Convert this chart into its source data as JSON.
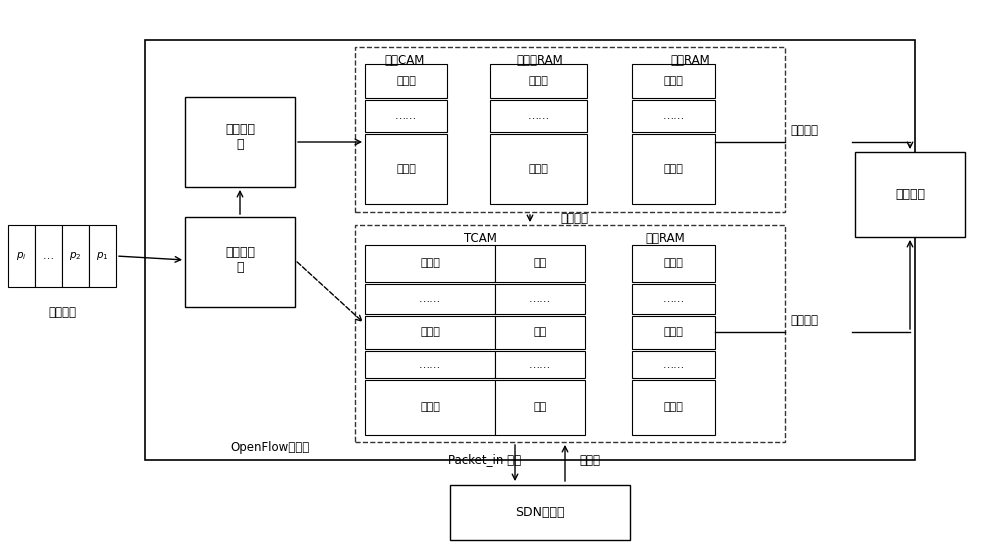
{
  "bg_color": "#ffffff",
  "text_color": "#000000",
  "box_edge_color": "#000000",
  "dashed_edge_color": "#555555",
  "fig_width": 10.0,
  "fig_height": 5.42,
  "labels": {
    "data_group": "数据分组",
    "generate_sig": "生成签名\n值",
    "extract_key": "提取关键\n字",
    "openflow": "OpenFlow交换机",
    "sig_cam": "签名CAM",
    "key_ram": "关键字RAM",
    "forward_ram1": "转发RAM",
    "tcam": "TCAM",
    "forward_ram2": "转发RAM",
    "execute": "执行动作",
    "sdn": "SDN控制器",
    "predict_success": "预测成功",
    "predict_fail": "预测失败",
    "match_success": "匹配成功",
    "packet_in": "Packet_in 消息",
    "new_rule": "新规则",
    "sig_val1": "签名值",
    "dots1": "……",
    "sig_val2": "签名值",
    "key1": "关键字",
    "dots2": "……",
    "key2": "关键字",
    "action1": "动作集",
    "dots3": "……",
    "action2": "动作集",
    "match1": "匹配域",
    "dots4_1": "……",
    "match2": "匹配域",
    "dots4_2": "……",
    "match3": "匹配域",
    "mask1": "掩码",
    "dots5_1": "……",
    "mask2": "掩码",
    "dots5_2": "……",
    "mask3": "掩码",
    "act_b1": "动作集",
    "dots6_1": "……",
    "act_b2": "动作集",
    "dots6_2": "……",
    "act_b3": "动作集",
    "p_i": "p_i",
    "p_dots": "…",
    "p_2": "p_2",
    "p_1": "p_1"
  }
}
